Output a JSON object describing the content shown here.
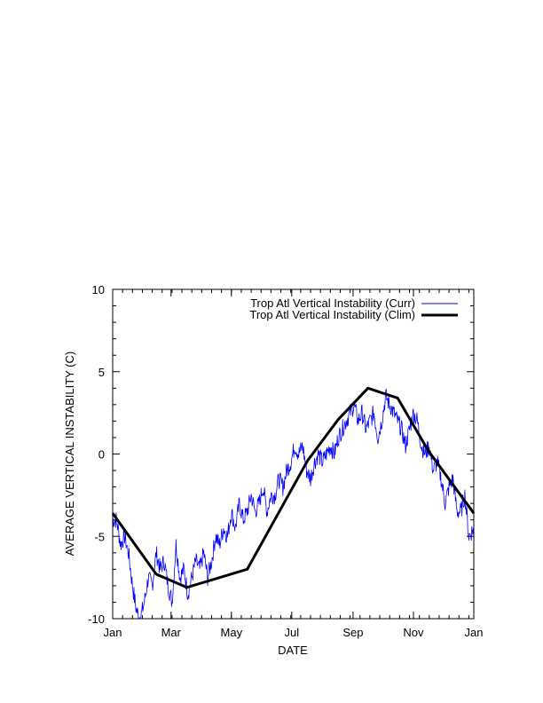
{
  "chart_data": {
    "type": "line",
    "title": "",
    "xlabel": "DATE",
    "ylabel": "AVERAGE VERTICAL INSTABILITY (C)",
    "xlim": [
      0,
      365
    ],
    "ylim": [
      -10,
      10
    ],
    "x_ticks": [
      {
        "day": 0,
        "label": "Jan"
      },
      {
        "day": 59,
        "label": "Mar"
      },
      {
        "day": 120,
        "label": "May"
      },
      {
        "day": 181,
        "label": "Jul"
      },
      {
        "day": 243,
        "label": "Sep"
      },
      {
        "day": 304,
        "label": "Nov"
      },
      {
        "day": 365,
        "label": "Jan"
      }
    ],
    "y_ticks": [
      -10,
      -5,
      0,
      5,
      10
    ],
    "legend_position": "top-right",
    "series": [
      {
        "name": "Trop Atl Vertical Instability (Curr)",
        "color": "#0000ff",
        "style": "thin noisy line",
        "x": [
          0,
          4,
          8,
          12,
          16,
          20,
          24,
          28,
          32,
          36,
          40,
          44,
          48,
          52,
          56,
          60,
          64,
          68,
          72,
          76,
          80,
          84,
          88,
          92,
          96,
          100,
          104,
          108,
          112,
          116,
          120,
          124,
          128,
          132,
          136,
          140,
          144,
          148,
          152,
          156,
          160,
          164,
          168,
          172,
          176,
          180,
          184,
          188,
          192,
          196,
          200,
          204,
          208,
          212,
          216,
          220,
          224,
          228,
          232,
          236,
          240,
          244,
          248,
          252,
          256,
          260,
          264,
          268,
          272,
          276,
          280,
          284,
          288,
          292,
          296,
          300,
          304,
          308,
          312,
          316,
          320,
          324,
          328,
          332,
          336,
          340,
          344,
          348,
          352,
          356,
          360,
          365
        ],
        "y": [
          -4.0,
          -4.0,
          -5.5,
          -5.0,
          -6.0,
          -8.0,
          -9.5,
          -10.0,
          -9.0,
          -7.5,
          -8.0,
          -6.0,
          -7.0,
          -6.5,
          -8.0,
          -9.0,
          -5.5,
          -7.5,
          -7.0,
          -8.5,
          -7.5,
          -6.5,
          -7.0,
          -6.0,
          -7.5,
          -6.5,
          -5.0,
          -5.5,
          -4.5,
          -5.0,
          -3.5,
          -4.5,
          -3.0,
          -4.0,
          -3.5,
          -2.5,
          -3.5,
          -3.0,
          -2.0,
          -3.5,
          -2.5,
          -2.5,
          -1.5,
          -2.0,
          -1.0,
          -0.5,
          0.5,
          0.0,
          0.5,
          -1.0,
          -1.5,
          -0.5,
          0.0,
          -0.5,
          0.0,
          0.5,
          0.0,
          1.0,
          1.5,
          2.0,
          2.5,
          3.0,
          2.0,
          2.5,
          1.5,
          2.0,
          2.5,
          1.0,
          2.0,
          3.5,
          3.0,
          2.5,
          2.0,
          1.5,
          0.5,
          1.5,
          2.5,
          2.0,
          0.5,
          0.0,
          0.5,
          -1.0,
          -0.5,
          -1.5,
          -3.0,
          -2.0,
          -1.5,
          -3.5,
          -3.5,
          -2.5,
          -5.0,
          -4.5
        ]
      },
      {
        "name": "Trop Atl Vertical Instability (Clim)",
        "color": "#000000",
        "style": "thick line",
        "x": [
          0,
          44,
          75,
          136,
          197,
          228,
          258,
          288,
          319,
          365
        ],
        "y": [
          -3.6,
          -7.3,
          -8.1,
          -7.0,
          -0.4,
          2.1,
          4.0,
          3.4,
          0.2,
          -3.6
        ]
      }
    ]
  }
}
